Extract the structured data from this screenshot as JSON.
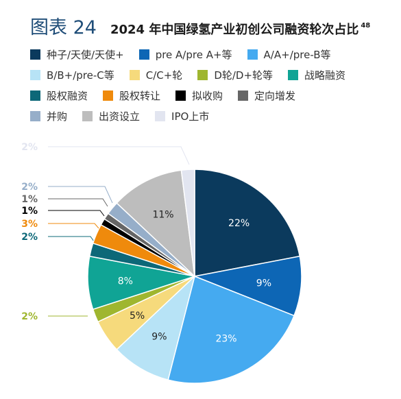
{
  "header": {
    "figure_label": "图表 24",
    "title": "2024 年中国绿氢产业初创公司融资轮次占比",
    "superscript": "48"
  },
  "chart_data": {
    "type": "pie",
    "title": "2024 年中国绿氢产业初创公司融资轮次占比",
    "legend_position": "top",
    "start_angle_deg": 0,
    "direction": "clockwise",
    "slices": [
      {
        "label": "种子/天使/天使+",
        "value": 22,
        "display": "22%",
        "color": "#0b3a5d"
      },
      {
        "label": "pre A/pre A+等",
        "value": 9,
        "display": "9%",
        "color": "#0d66b5"
      },
      {
        "label": "A/A+/pre-B等",
        "value": 23,
        "display": "23%",
        "color": "#45aaf0"
      },
      {
        "label": "B/B+/pre-C等",
        "value": 9,
        "display": "9%",
        "color": "#b7e3f6"
      },
      {
        "label": "C/C+轮",
        "value": 5,
        "display": "5%",
        "color": "#f6da7c"
      },
      {
        "label": "D轮/D+轮等",
        "value": 2,
        "display": "2%",
        "color": "#9fb62f"
      },
      {
        "label": "战略融资",
        "value": 8,
        "display": "8%",
        "color": "#10a495"
      },
      {
        "label": "股权融资",
        "value": 2,
        "display": "2%",
        "color": "#0d6878"
      },
      {
        "label": "股权转让",
        "value": 3,
        "display": "3%",
        "color": "#ef8a0c"
      },
      {
        "label": "拟收购",
        "value": 1,
        "display": "1%",
        "color": "#000000"
      },
      {
        "label": "定向增发",
        "value": 1,
        "display": "1%",
        "color": "#666666"
      },
      {
        "label": "并购",
        "value": 2,
        "display": "2%",
        "color": "#96aec9"
      },
      {
        "label": "出资设立",
        "value": 11,
        "display": "11%",
        "color": "#bdbdbd"
      },
      {
        "label": "IPO上市",
        "value": 2,
        "display": "2%",
        "color": "#e2e5f0"
      }
    ]
  }
}
